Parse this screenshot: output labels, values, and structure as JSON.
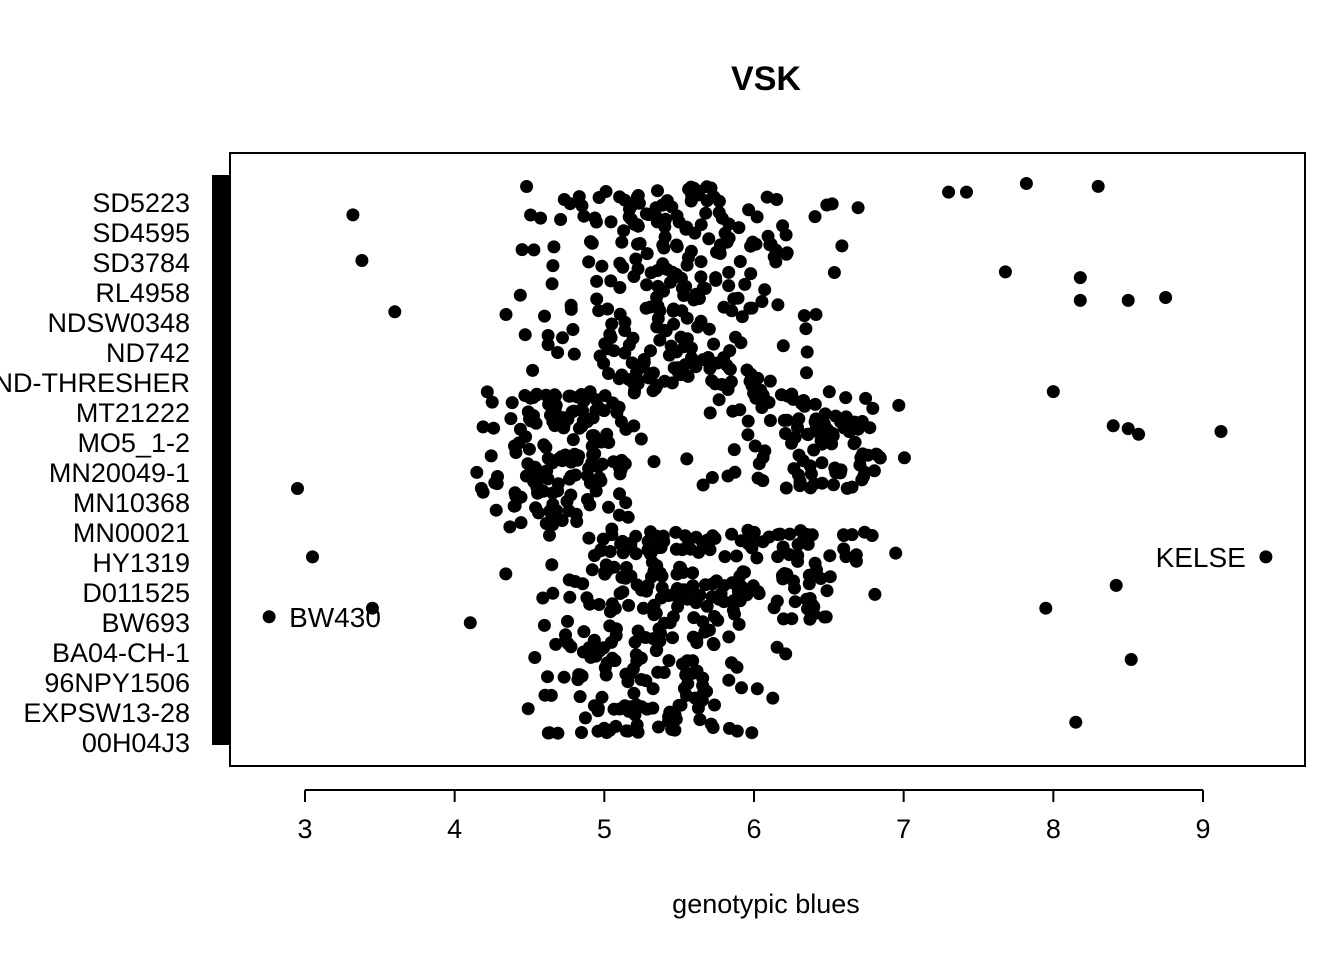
{
  "chart_data": {
    "type": "scatter",
    "title": "VSK",
    "xlabel": "genotypic blues",
    "ylabel": "",
    "xlim": [
      2.5,
      9.7
    ],
    "xticks": [
      "3",
      "4",
      "5",
      "6",
      "7",
      "8",
      "9"
    ],
    "grid": false,
    "legend": "none",
    "marker_color": "#000000",
    "categories": [
      "SD5223",
      "SD4595",
      "SD3784",
      "RL4958",
      "NDSW0348",
      "ND742",
      "ND-THRESHER",
      "MT21222",
      "MO5_1-2",
      "MN20049-1",
      "MN10368",
      "MN00021",
      "HY1319",
      "D011525",
      "BW693",
      "BA04-CH-1",
      "96NPY1506",
      "EXPSW13-28",
      "00H04J3"
    ],
    "ylim_fraction": [
      0.0,
      1.0
    ],
    "main_cloud": [
      {
        "yfrac_range": [
          0.02,
          0.38
        ],
        "x_center": 5.3,
        "x_spread": 0.65,
        "n": 260
      },
      {
        "yfrac_range": [
          0.38,
          0.62
        ],
        "x_center": 4.7,
        "x_spread": 0.45,
        "n": 170
      },
      {
        "yfrac_range": [
          0.62,
          0.98
        ],
        "x_center": 5.5,
        "x_spread": 0.75,
        "n": 280
      },
      {
        "yfrac_range": [
          0.45,
          0.62
        ],
        "x_center": 6.4,
        "x_spread": 0.55,
        "n": 110
      },
      {
        "yfrac_range": [
          0.22,
          0.38
        ],
        "x_center": 6.2,
        "x_spread": 0.55,
        "n": 90
      }
    ],
    "outlier_points": [
      {
        "x": 8.3,
        "y_frac": 0.98
      },
      {
        "x": 7.82,
        "y_frac": 0.985
      },
      {
        "x": 7.42,
        "y_frac": 0.97
      },
      {
        "x": 7.3,
        "y_frac": 0.97
      },
      {
        "x": 8.18,
        "y_frac": 0.82
      },
      {
        "x": 8.18,
        "y_frac": 0.78
      },
      {
        "x": 8.5,
        "y_frac": 0.78
      },
      {
        "x": 8.75,
        "y_frac": 0.785
      },
      {
        "x": 7.68,
        "y_frac": 0.83
      },
      {
        "x": 8.0,
        "y_frac": 0.62
      },
      {
        "x": 9.12,
        "y_frac": 0.55
      },
      {
        "x": 8.57,
        "y_frac": 0.545
      },
      {
        "x": 8.4,
        "y_frac": 0.56
      },
      {
        "x": 8.5,
        "y_frac": 0.555
      },
      {
        "x": 9.42,
        "y_frac": 0.33
      },
      {
        "x": 8.42,
        "y_frac": 0.28
      },
      {
        "x": 7.95,
        "y_frac": 0.24
      },
      {
        "x": 8.52,
        "y_frac": 0.15
      },
      {
        "x": 8.15,
        "y_frac": 0.04
      },
      {
        "x": 2.95,
        "y_frac": 0.45
      },
      {
        "x": 3.05,
        "y_frac": 0.33
      },
      {
        "x": 3.45,
        "y_frac": 0.24
      },
      {
        "x": 3.38,
        "y_frac": 0.85
      },
      {
        "x": 3.32,
        "y_frac": 0.93
      },
      {
        "x": 3.6,
        "y_frac": 0.76
      },
      {
        "x": 2.76,
        "y_frac": 0.225
      }
    ],
    "annotations": [
      {
        "text": "KELSE",
        "x": 9.42,
        "y_frac": 0.33,
        "side": "left"
      },
      {
        "text": "BW430",
        "x": 2.76,
        "y_frac": 0.225,
        "side": "right"
      }
    ]
  }
}
